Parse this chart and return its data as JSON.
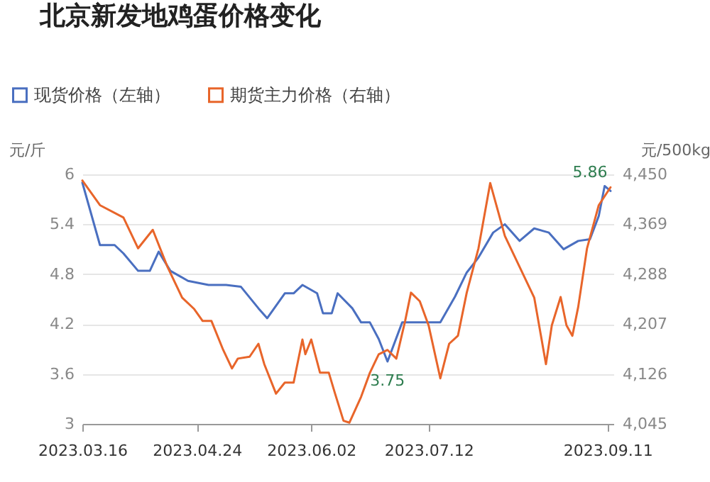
{
  "chart_data": {
    "type": "line",
    "title": "北京新发地鸡蛋价格变化",
    "ylabel": "元/斤",
    "y2label": "元/500kg",
    "legend": "top left",
    "grid": "y",
    "marker": "none",
    "xlim": [
      "2023-03-16",
      "2023-09-13"
    ],
    "xticks": [
      {
        "value": "2023-03-16",
        "label": "2023.03.16"
      },
      {
        "value": "2023-04-24",
        "label": "2023.04.24"
      },
      {
        "value": "2023-06-02",
        "label": "2023.06.02"
      },
      {
        "value": "2023-07-12",
        "label": "2023.07.12"
      },
      {
        "value": "2023-09-11",
        "label": "2023.09.11"
      }
    ],
    "ylim": [
      3,
      6
    ],
    "yticks": [
      3,
      3.6,
      4.2,
      4.8,
      5.4,
      6
    ],
    "y2lim": [
      4045,
      4450
    ],
    "y2ticks": [
      {
        "value": 4045,
        "label": "4,045"
      },
      {
        "value": 4126,
        "label": "4,126"
      },
      {
        "value": 4207,
        "label": "4,207"
      },
      {
        "value": 4288,
        "label": "4,288"
      },
      {
        "value": 4369,
        "label": "4,369"
      },
      {
        "value": 4450,
        "label": "4,450"
      }
    ],
    "annotations": [
      {
        "text": "5.86",
        "x": "2023-09-10",
        "y": 5.86
      },
      {
        "text": "3.75",
        "x": "2023-06-28",
        "y": 3.75
      }
    ],
    "series": [
      {
        "name": "现货价格（左轴）",
        "color": "#4a6fc0",
        "x": [
          "2023-03-16",
          "2023-03-22",
          "2023-03-27",
          "2023-03-30",
          "2023-04-04",
          "2023-04-08",
          "2023-04-11",
          "2023-04-15",
          "2023-04-21",
          "2023-04-28",
          "2023-05-04",
          "2023-05-09",
          "2023-05-15",
          "2023-05-18",
          "2023-05-24",
          "2023-05-27",
          "2023-05-30",
          "2023-06-04",
          "2023-06-06",
          "2023-06-09",
          "2023-06-11",
          "2023-06-16",
          "2023-06-19",
          "2023-06-22",
          "2023-06-25",
          "2023-06-28",
          "2023-07-03",
          "2023-07-16",
          "2023-07-21",
          "2023-07-25",
          "2023-07-29",
          "2023-08-03",
          "2023-08-07",
          "2023-08-12",
          "2023-08-17",
          "2023-08-22",
          "2023-08-27",
          "2023-09-01",
          "2023-09-05",
          "2023-09-08",
          "2023-09-10",
          "2023-09-12"
        ],
        "values": [
          5.9,
          5.15,
          5.15,
          5.05,
          4.84,
          4.84,
          5.07,
          4.84,
          4.72,
          4.67,
          4.67,
          4.65,
          4.39,
          4.27,
          4.57,
          4.57,
          4.67,
          4.57,
          4.33,
          4.33,
          4.57,
          4.39,
          4.22,
          4.22,
          4.02,
          3.75,
          4.22,
          4.22,
          4.53,
          4.82,
          5.0,
          5.3,
          5.4,
          5.2,
          5.35,
          5.3,
          5.1,
          5.2,
          5.22,
          5.5,
          5.86,
          5.8
        ]
      },
      {
        "name": "期货主力价格（右轴）",
        "color": "#e8652a",
        "axis": "y2",
        "x": [
          "2023-03-16",
          "2023-03-22",
          "2023-03-30",
          "2023-04-04",
          "2023-04-09",
          "2023-04-14",
          "2023-04-19",
          "2023-04-23",
          "2023-04-26",
          "2023-04-29",
          "2023-05-03",
          "2023-05-06",
          "2023-05-08",
          "2023-05-12",
          "2023-05-15",
          "2023-05-17",
          "2023-05-21",
          "2023-05-24",
          "2023-05-27",
          "2023-05-30",
          "2023-05-31",
          "2023-06-02",
          "2023-06-05",
          "2023-06-08",
          "2023-06-10",
          "2023-06-13",
          "2023-06-15",
          "2023-06-19",
          "2023-06-22",
          "2023-06-25",
          "2023-06-28",
          "2023-07-01",
          "2023-07-04",
          "2023-07-06",
          "2023-07-09",
          "2023-07-12",
          "2023-07-16",
          "2023-07-19",
          "2023-07-22",
          "2023-07-25",
          "2023-07-29",
          "2023-08-02",
          "2023-08-07",
          "2023-08-12",
          "2023-08-17",
          "2023-08-21",
          "2023-08-23",
          "2023-08-26",
          "2023-08-28",
          "2023-08-30",
          "2023-09-01",
          "2023-09-04",
          "2023-09-08",
          "2023-09-12"
        ],
        "values": [
          4440,
          4400,
          4380,
          4330,
          4360,
          4300,
          4250,
          4232,
          4212,
          4212,
          4165,
          4135,
          4151,
          4154,
          4175,
          4142,
          4094,
          4112,
          4112,
          4182,
          4158,
          4182,
          4128,
          4128,
          4096,
          4050,
          4047,
          4089,
          4128,
          4158,
          4165,
          4151,
          4212,
          4258,
          4244,
          4205,
          4119,
          4175,
          4188,
          4258,
          4330,
          4436,
          4350,
          4300,
          4250,
          4142,
          4205,
          4251,
          4205,
          4188,
          4235,
          4330,
          4400,
          4429
        ]
      }
    ]
  }
}
